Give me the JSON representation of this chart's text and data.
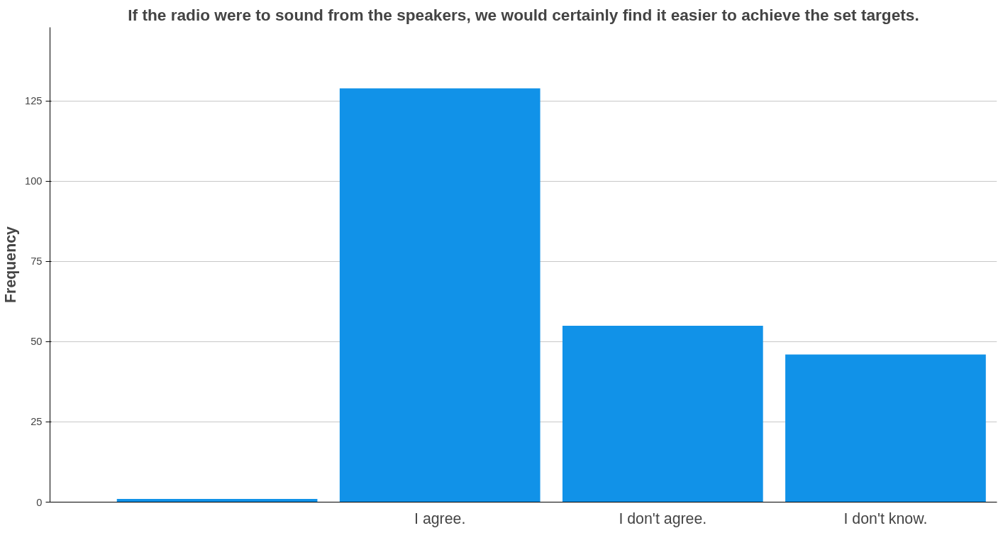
{
  "chart_data": {
    "type": "bar",
    "title": "If the radio were to sound from the speakers, we would certainly find it easier to achieve the set targets.",
    "ylabel": "Frequency",
    "categories": [
      null,
      "I agree.",
      "I don't agree.",
      "I don't know."
    ],
    "values": [
      1,
      129,
      55,
      46
    ],
    "color": "#1192e8",
    "ylim": [
      0,
      148
    ],
    "yticks": [
      0,
      25,
      50,
      75,
      100,
      125
    ],
    "grid": "y"
  }
}
